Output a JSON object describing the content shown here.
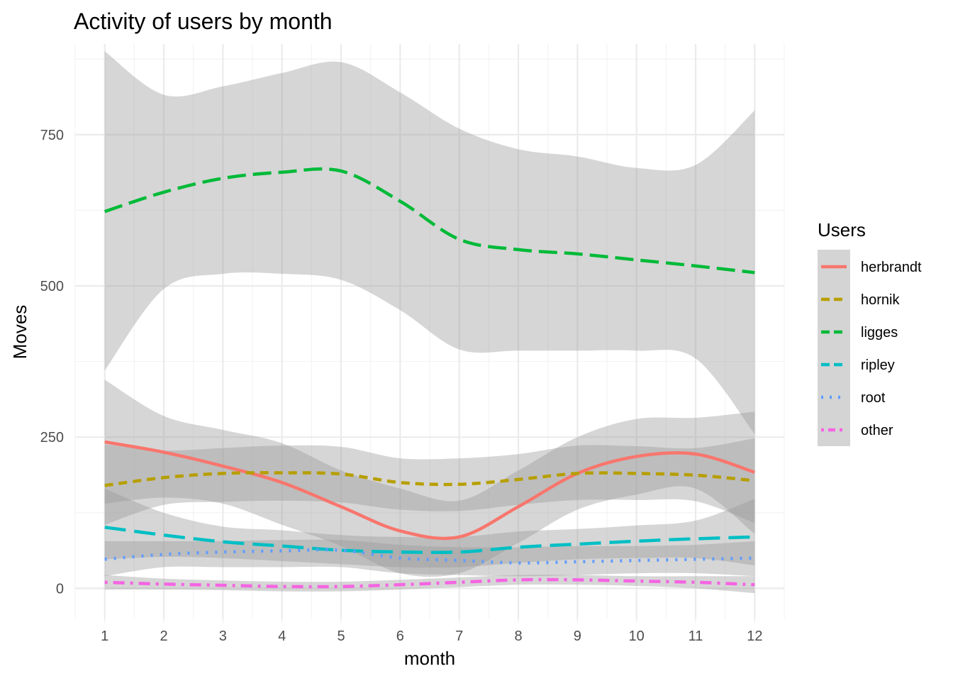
{
  "chart_data": {
    "type": "line",
    "title": "Activity of users by month",
    "xlabel": "month",
    "ylabel": "Moves",
    "xlim": [
      0.5,
      12.5
    ],
    "ylim": [
      -50,
      900
    ],
    "x_ticks": [
      1,
      2,
      3,
      4,
      5,
      6,
      7,
      8,
      9,
      10,
      11,
      12
    ],
    "y_ticks": [
      0,
      250,
      500,
      750
    ],
    "grid": true,
    "legend": {
      "title": "Users",
      "position": "right"
    },
    "x": [
      1,
      2,
      3,
      4,
      5,
      6,
      7,
      8,
      9,
      10,
      11,
      12
    ],
    "series": [
      {
        "name": "herbrandt",
        "color": "#F8766D",
        "dash": "solid",
        "values": [
          242,
          225,
          202,
          175,
          135,
          95,
          85,
          135,
          190,
          218,
          222,
          192
        ],
        "lower": [
          140,
          150,
          140,
          105,
          70,
          25,
          25,
          75,
          130,
          155,
          165,
          90
        ],
        "upper": [
          345,
          285,
          262,
          240,
          195,
          165,
          145,
          195,
          250,
          280,
          282,
          292
        ]
      },
      {
        "name": "hornik",
        "color": "#B79F00",
        "dash": "dashed",
        "values": [
          170,
          183,
          190,
          191,
          189,
          175,
          172,
          180,
          190,
          190,
          187,
          178
        ],
        "lower": [
          105,
          138,
          143,
          145,
          142,
          130,
          128,
          138,
          146,
          146,
          144,
          108
        ],
        "upper": [
          238,
          228,
          232,
          236,
          234,
          215,
          215,
          222,
          236,
          235,
          232,
          248
        ]
      },
      {
        "name": "ligges",
        "color": "#00BA38",
        "dash": "longdash",
        "values": [
          623,
          655,
          678,
          688,
          690,
          640,
          577,
          560,
          553,
          543,
          533,
          522
        ],
        "lower": [
          360,
          495,
          520,
          520,
          510,
          460,
          395,
          393,
          393,
          393,
          380,
          255
        ],
        "upper": [
          888,
          816,
          830,
          852,
          870,
          820,
          760,
          726,
          714,
          695,
          700,
          790
        ]
      },
      {
        "name": "ripley",
        "color": "#00BFC4",
        "dash": "longdash2",
        "values": [
          101,
          88,
          77,
          70,
          63,
          60,
          60,
          68,
          73,
          78,
          82,
          85
        ],
        "lower": [
          48,
          52,
          50,
          45,
          40,
          35,
          35,
          42,
          48,
          50,
          50,
          38
        ],
        "upper": [
          165,
          125,
          102,
          96,
          88,
          85,
          85,
          94,
          98,
          104,
          112,
          148
        ]
      },
      {
        "name": "root",
        "color": "#619CFF",
        "dash": "dotted",
        "values": [
          48,
          56,
          60,
          62,
          63,
          50,
          46,
          42,
          44,
          46,
          48,
          50
        ],
        "lower": [
          20,
          35,
          35,
          35,
          35,
          25,
          22,
          20,
          22,
          25,
          25,
          20
        ],
        "upper": [
          78,
          78,
          78,
          80,
          80,
          72,
          68,
          68,
          70,
          70,
          72,
          78
        ]
      },
      {
        "name": "other",
        "color": "#F564E3",
        "dash": "dotdash",
        "values": [
          10,
          7,
          5,
          3,
          3,
          6,
          10,
          14,
          14,
          12,
          10,
          6
        ],
        "lower": [
          -2,
          -2,
          -3,
          -5,
          -5,
          -2,
          2,
          6,
          6,
          4,
          0,
          -8
        ],
        "upper": [
          22,
          16,
          13,
          11,
          11,
          14,
          18,
          22,
          22,
          20,
          20,
          20
        ]
      }
    ]
  }
}
